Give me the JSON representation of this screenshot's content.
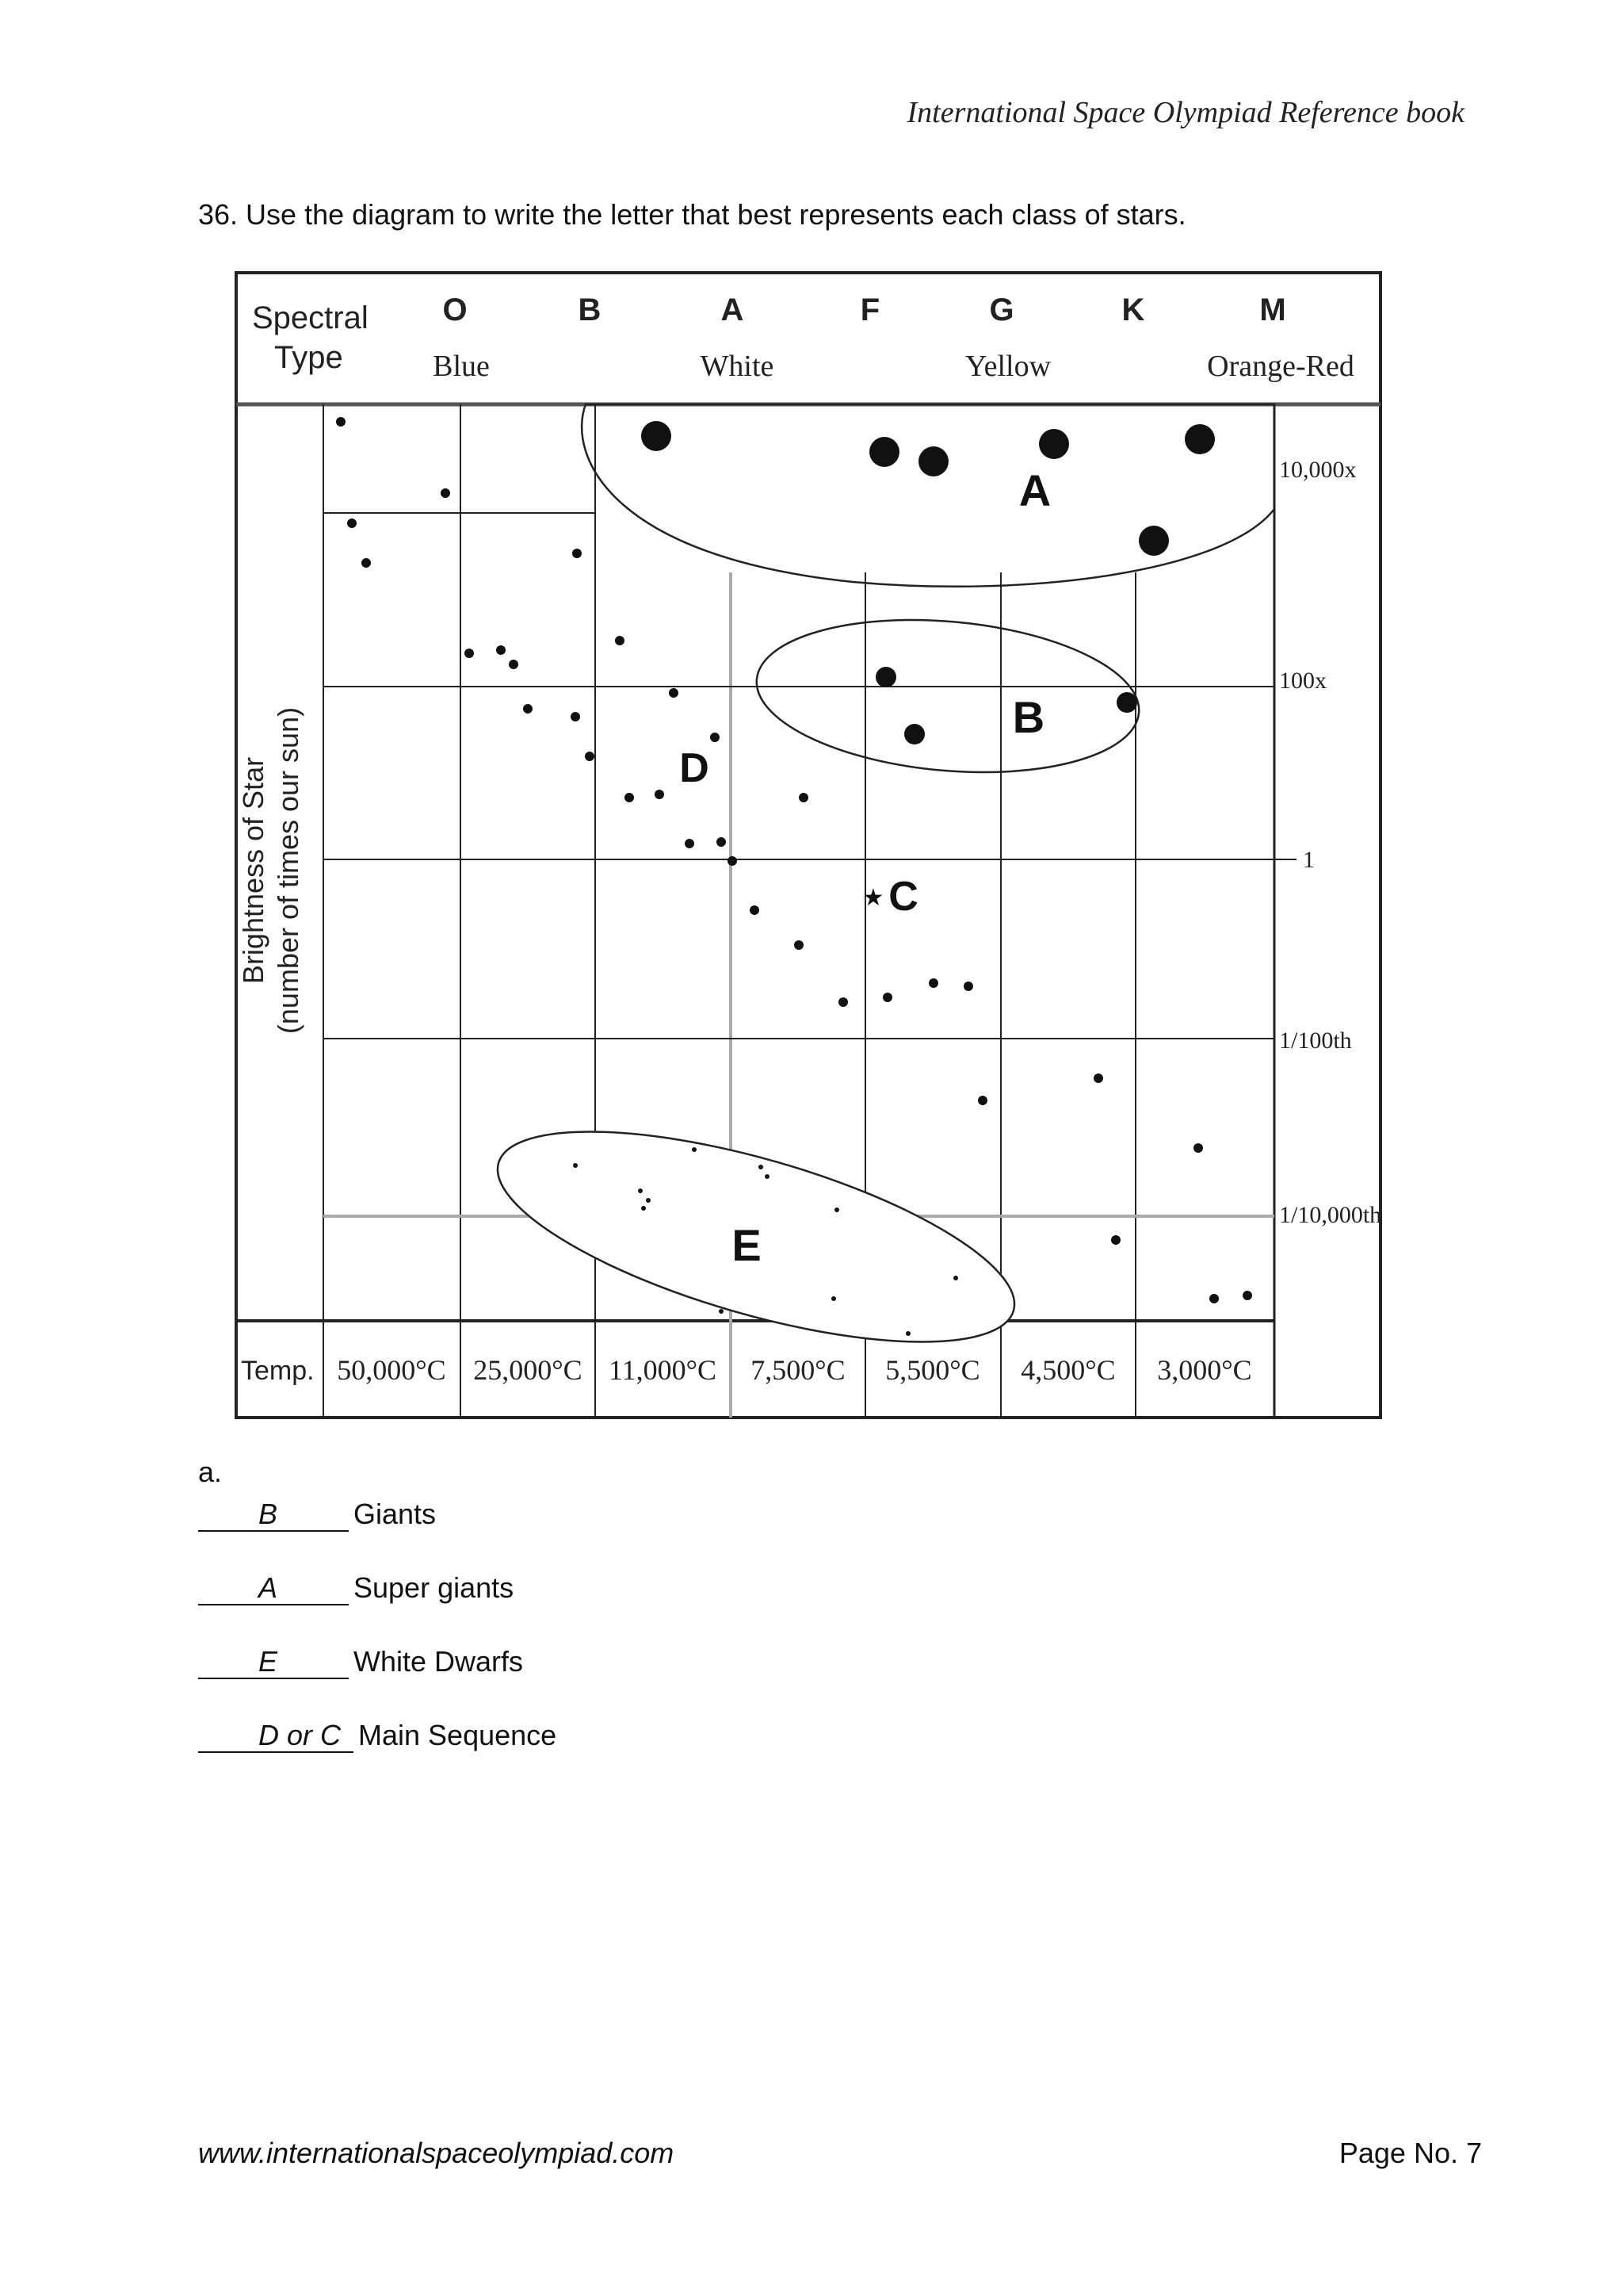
{
  "header": {
    "title": "International Space Olympiad Reference book"
  },
  "question": {
    "text": "36. Use the diagram to write the letter that best represents each class of stars."
  },
  "diagram": {
    "spectral_type_label_line1": "Spectral",
    "spectral_type_label_line2": "Type",
    "spectral_classes": [
      "O",
      "B",
      "A",
      "F",
      "G",
      "K",
      "M"
    ],
    "color_labels": [
      "Blue",
      "White",
      "Yellow",
      "Orange-Red"
    ],
    "y_axis_label_line1": "Brightness of Star",
    "y_axis_label_line2": "(number of times our sun)",
    "brightness_labels": [
      "10,000x",
      "100x",
      "1",
      "1/100th",
      "1/10,000th"
    ],
    "temp_label": "Temp.",
    "temperatures": [
      "50,000°C",
      "25,000°C",
      "11,000°C",
      "7,500°C",
      "5,500°C",
      "4,500°C",
      "3,000°C"
    ],
    "region_letters": [
      "A",
      "B",
      "C",
      "D",
      "E"
    ],
    "sun_marker": "★"
  },
  "answers": {
    "part_label": "a.",
    "items": [
      {
        "blank": "B",
        "label": "Giants"
      },
      {
        "blank": "A",
        "label": " Super giants"
      },
      {
        "blank": "E",
        "label": " White Dwarfs"
      },
      {
        "blank": "D or C",
        "label": "Main Sequence"
      }
    ]
  },
  "footer": {
    "url": "www.internationalspaceolympiad.com",
    "page": "Page No. 7"
  }
}
